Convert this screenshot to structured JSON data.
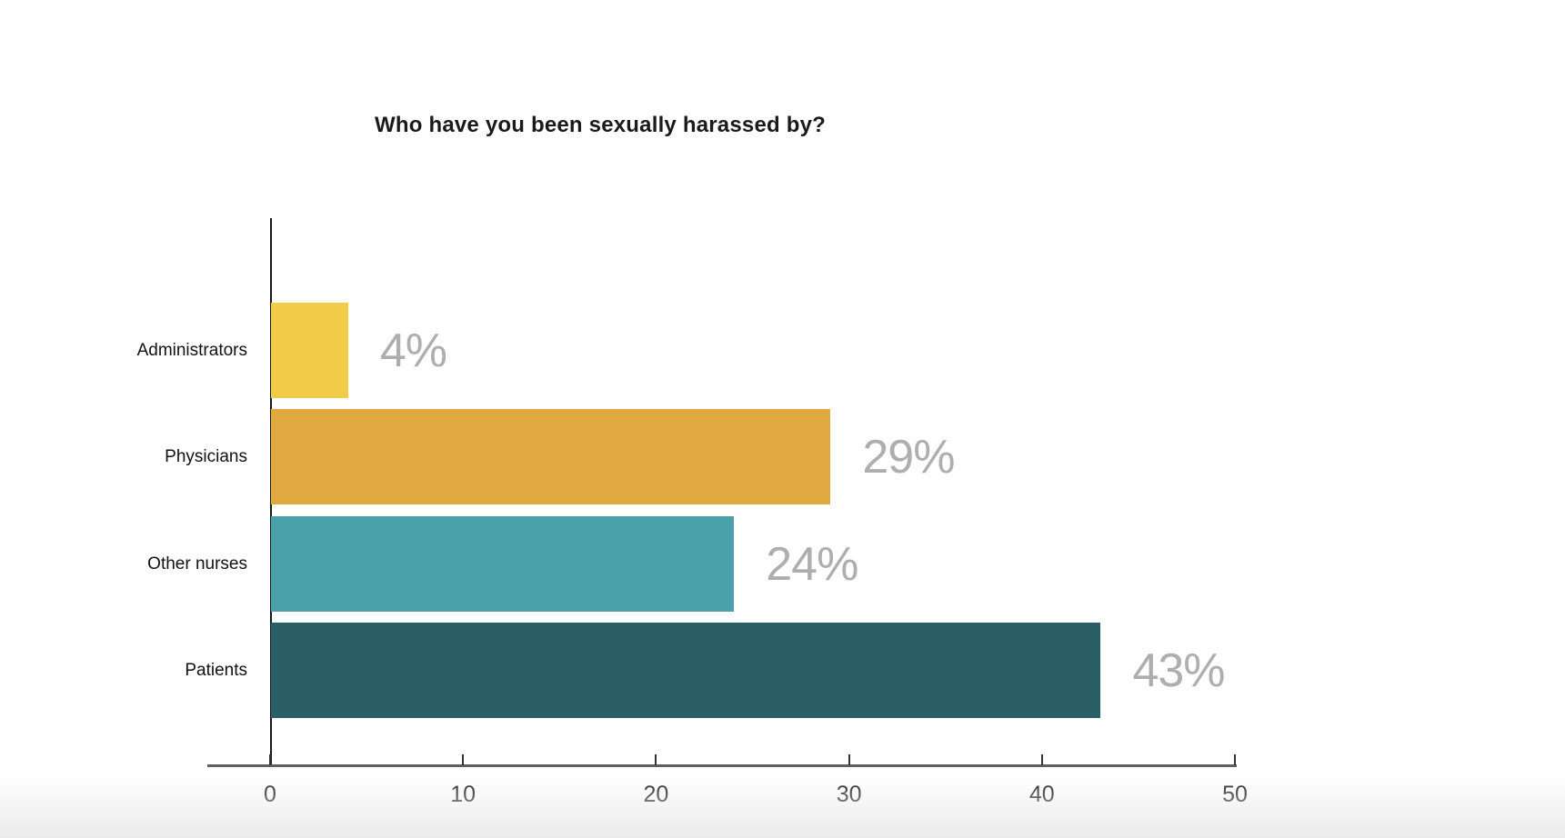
{
  "page": {
    "background_color": "#ffffff",
    "bottom_fade_color": "#ebebeb"
  },
  "chart_data": {
    "type": "bar",
    "orientation": "horizontal",
    "title": "Who have you been sexually harassed by?",
    "categories": [
      "Administrators",
      "Physicians",
      "Other nurses",
      "Patients"
    ],
    "values": [
      4,
      29,
      24,
      43
    ],
    "value_labels": [
      "4%",
      "29%",
      "24%",
      "43%"
    ],
    "bar_colors": [
      "#F2CC49",
      "#DFA940",
      "#4AA1A9",
      "#2A6065"
    ],
    "value_label_color": "#aeaeae",
    "category_label_color": "#111111",
    "title_color": "#1a1a1a",
    "axis_line_color": "#5f5f5f",
    "y_axis_line_color": "#1a1a1a",
    "tick_label_color": "#1a1a1a",
    "xlabel": "",
    "ylabel": "",
    "xlim": [
      0,
      50
    ],
    "x_ticks": [
      0,
      10,
      20,
      30,
      40,
      50
    ],
    "grid": false,
    "legend": false
  }
}
